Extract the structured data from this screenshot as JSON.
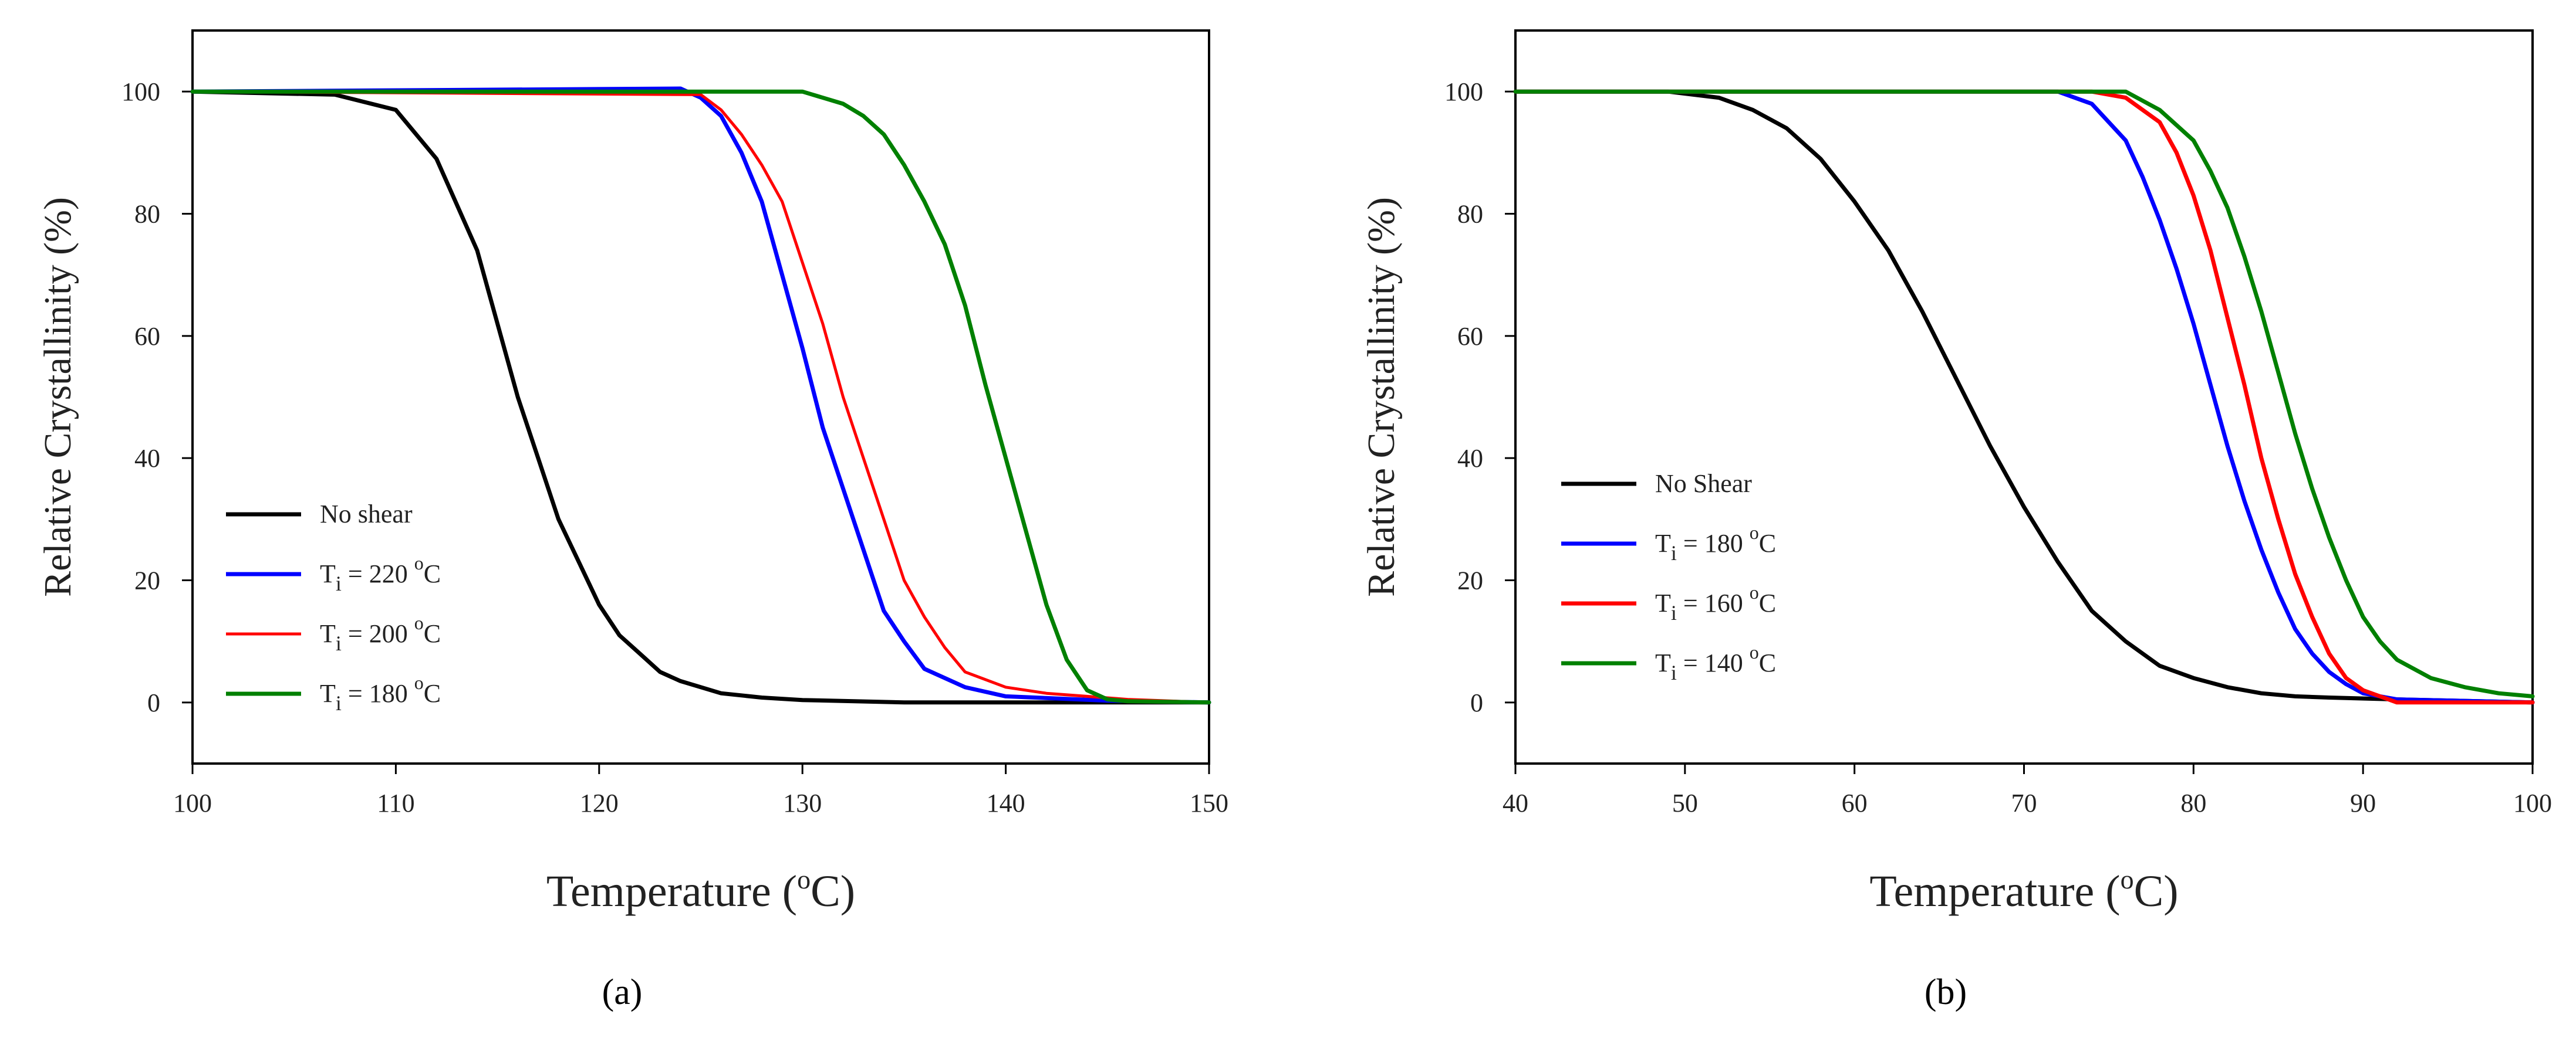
{
  "figure": {
    "panel_a": {
      "label": "(a)"
    },
    "panel_b": {
      "label": "(b)"
    }
  },
  "chart_data": [
    {
      "type": "line",
      "id": "a",
      "xlabel": "Temperature",
      "xlabel_unit": "C",
      "ylabel": "Relative Crystallinity (%)",
      "xlim": [
        100,
        150
      ],
      "ylim": [
        -10,
        110
      ],
      "xticks": [
        100,
        110,
        120,
        130,
        140,
        150
      ],
      "yticks": [
        0,
        20,
        40,
        60,
        80,
        100
      ],
      "legend_position": "left",
      "series": [
        {
          "name": "No shear",
          "name_parts": {
            "text": "No shear"
          },
          "color": "#000000",
          "x": [
            100,
            107,
            110,
            112,
            114,
            115,
            116,
            117,
            118,
            119,
            120,
            121,
            122,
            123,
            124,
            126,
            128,
            130,
            135,
            150
          ],
          "y": [
            100,
            99.5,
            97,
            89,
            74,
            62,
            50,
            40,
            30,
            23,
            16,
            11,
            8,
            5,
            3.5,
            1.5,
            0.8,
            0.4,
            0,
            0
          ]
        },
        {
          "name": "Ti = 220 oC",
          "name_parts": {
            "pre": "T",
            "sub": "i",
            "mid": " = 220 ",
            "sup": "o",
            "post": "C"
          },
          "color": "#0000ff",
          "x": [
            100,
            124,
            125,
            126,
            127,
            128,
            129,
            130,
            131,
            132,
            133,
            134,
            135,
            136,
            138,
            140,
            145,
            150
          ],
          "y": [
            100,
            100.5,
            99,
            96,
            90,
            82,
            70,
            58,
            45,
            35,
            25,
            15,
            10,
            5.5,
            2.5,
            1,
            0.3,
            0
          ]
        },
        {
          "name": "Ti = 200 oC",
          "name_parts": {
            "pre": "T",
            "sub": "i",
            "mid": " = 200 ",
            "sup": "o",
            "post": "C"
          },
          "color": "#ff0000",
          "x": [
            100,
            125,
            126,
            127,
            128,
            129,
            130,
            131,
            132,
            133,
            134,
            135,
            136,
            137,
            138,
            140,
            142,
            146,
            150
          ],
          "y": [
            100,
            99.5,
            97,
            93,
            88,
            82,
            72,
            62,
            50,
            40,
            30,
            20,
            14,
            9,
            5,
            2.5,
            1.5,
            0.5,
            0
          ]
        },
        {
          "name": "Ti = 180 oC",
          "name_parts": {
            "pre": "T",
            "sub": "i",
            "mid": " = 180 ",
            "sup": "o",
            "post": "C"
          },
          "color": "#008000",
          "x": [
            100,
            130,
            132,
            133,
            134,
            135,
            136,
            137,
            138,
            139,
            140,
            141,
            142,
            143,
            144,
            145,
            146,
            150
          ],
          "y": [
            100,
            100,
            98,
            96,
            93,
            88,
            82,
            75,
            65,
            52,
            40,
            28,
            16,
            7,
            2,
            0.5,
            0.2,
            0
          ]
        }
      ]
    },
    {
      "type": "line",
      "id": "b",
      "xlabel": "Temperature",
      "xlabel_unit": "C",
      "ylabel": "Relative Crystallinity (%)",
      "xlim": [
        40,
        100
      ],
      "ylim": [
        -10,
        110
      ],
      "xticks": [
        40,
        50,
        60,
        70,
        80,
        90,
        100
      ],
      "yticks": [
        0,
        20,
        40,
        60,
        80,
        100
      ],
      "legend_position": "left",
      "series": [
        {
          "name": "No Shear",
          "name_parts": {
            "text": "No Shear"
          },
          "color": "#000000",
          "x": [
            40,
            49,
            52,
            54,
            56,
            58,
            60,
            62,
            64,
            66,
            68,
            70,
            72,
            74,
            76,
            78,
            80,
            82,
            84,
            86,
            88,
            92,
            100
          ],
          "y": [
            100,
            100,
            99,
            97,
            94,
            89,
            82,
            74,
            64,
            53,
            42,
            32,
            23,
            15,
            10,
            6,
            4,
            2.5,
            1.5,
            1,
            0.8,
            0.5,
            0
          ]
        },
        {
          "name": "Ti = 180 oC",
          "name_parts": {
            "pre": "T",
            "sub": "i",
            "mid": " = 180 ",
            "sup": "o",
            "post": "C"
          },
          "color": "#0000ff",
          "x": [
            40,
            72,
            74,
            76,
            77,
            78,
            79,
            80,
            81,
            82,
            83,
            84,
            85,
            86,
            87,
            88,
            89,
            90,
            92,
            100
          ],
          "y": [
            100,
            100,
            98,
            92,
            86,
            79,
            71,
            62,
            52,
            42,
            33,
            25,
            18,
            12,
            8,
            5,
            3,
            1.5,
            0.5,
            0
          ]
        },
        {
          "name": "Ti = 160 oC",
          "name_parts": {
            "pre": "T",
            "sub": "i",
            "mid": " = 160 ",
            "sup": "o",
            "post": "C"
          },
          "color": "#ff0000",
          "x": [
            40,
            74,
            76,
            78,
            79,
            80,
            81,
            82,
            83,
            84,
            85,
            86,
            87,
            88,
            89,
            90,
            91,
            92,
            100
          ],
          "y": [
            100,
            100,
            99,
            95,
            90,
            83,
            74,
            63,
            52,
            40,
            30,
            21,
            14,
            8,
            4,
            2,
            1,
            0,
            0
          ]
        },
        {
          "name": "Ti = 140 oC",
          "name_parts": {
            "pre": "T",
            "sub": "i",
            "mid": " = 140 ",
            "sup": "o",
            "post": "C"
          },
          "color": "#008000",
          "x": [
            40,
            76,
            78,
            80,
            81,
            82,
            83,
            84,
            85,
            86,
            87,
            88,
            89,
            90,
            91,
            92,
            94,
            96,
            98,
            100
          ],
          "y": [
            100,
            100,
            97,
            92,
            87,
            81,
            73,
            64,
            54,
            44,
            35,
            27,
            20,
            14,
            10,
            7,
            4,
            2.5,
            1.5,
            1
          ]
        }
      ]
    }
  ]
}
